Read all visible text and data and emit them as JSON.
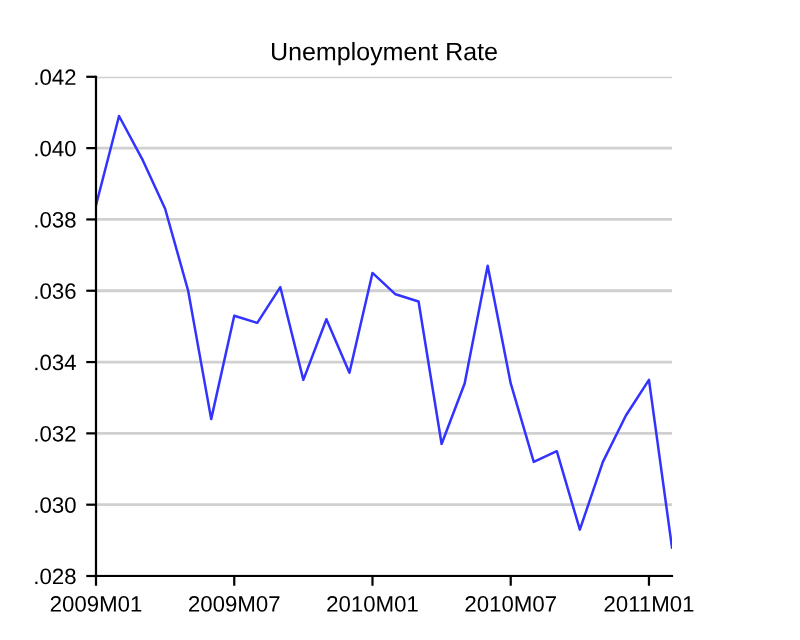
{
  "chart_data": {
    "type": "line",
    "title": "Unemployment Rate",
    "categories": [
      "2009M01",
      null,
      null,
      null,
      null,
      null,
      "2009M07",
      null,
      null,
      null,
      null,
      null,
      "2010M01",
      null,
      null,
      null,
      null,
      null,
      "2010M07",
      null,
      null,
      null,
      null,
      null,
      "2011M01",
      null
    ],
    "series": [
      {
        "color": "#3333ff",
        "values": [
          0.0384,
          0.0409,
          0.0397,
          0.0383,
          0.036,
          0.0324,
          0.0353,
          0.0351,
          0.0361,
          0.0335,
          0.0352,
          0.0337,
          0.0365,
          0.0359,
          0.0357,
          0.0317,
          0.0334,
          0.0367,
          0.0334,
          0.0312,
          0.0315,
          0.0293,
          0.0312,
          0.0325,
          0.0335,
          0.0288
        ]
      }
    ],
    "ylim": [
      0.028,
      0.042
    ],
    "yticks": [
      {
        "value": 0.028,
        "label": ".028"
      },
      {
        "value": 0.03,
        "label": ".030"
      },
      {
        "value": 0.032,
        "label": ".032"
      },
      {
        "value": 0.034,
        "label": ".034"
      },
      {
        "value": 0.036,
        "label": ".036"
      },
      {
        "value": 0.038,
        "label": ".038"
      },
      {
        "value": 0.04,
        "label": ".040"
      },
      {
        "value": 0.042,
        "label": ".042"
      }
    ],
    "grid": "y",
    "legend": false,
    "marker": "none",
    "line_style": "solid"
  }
}
